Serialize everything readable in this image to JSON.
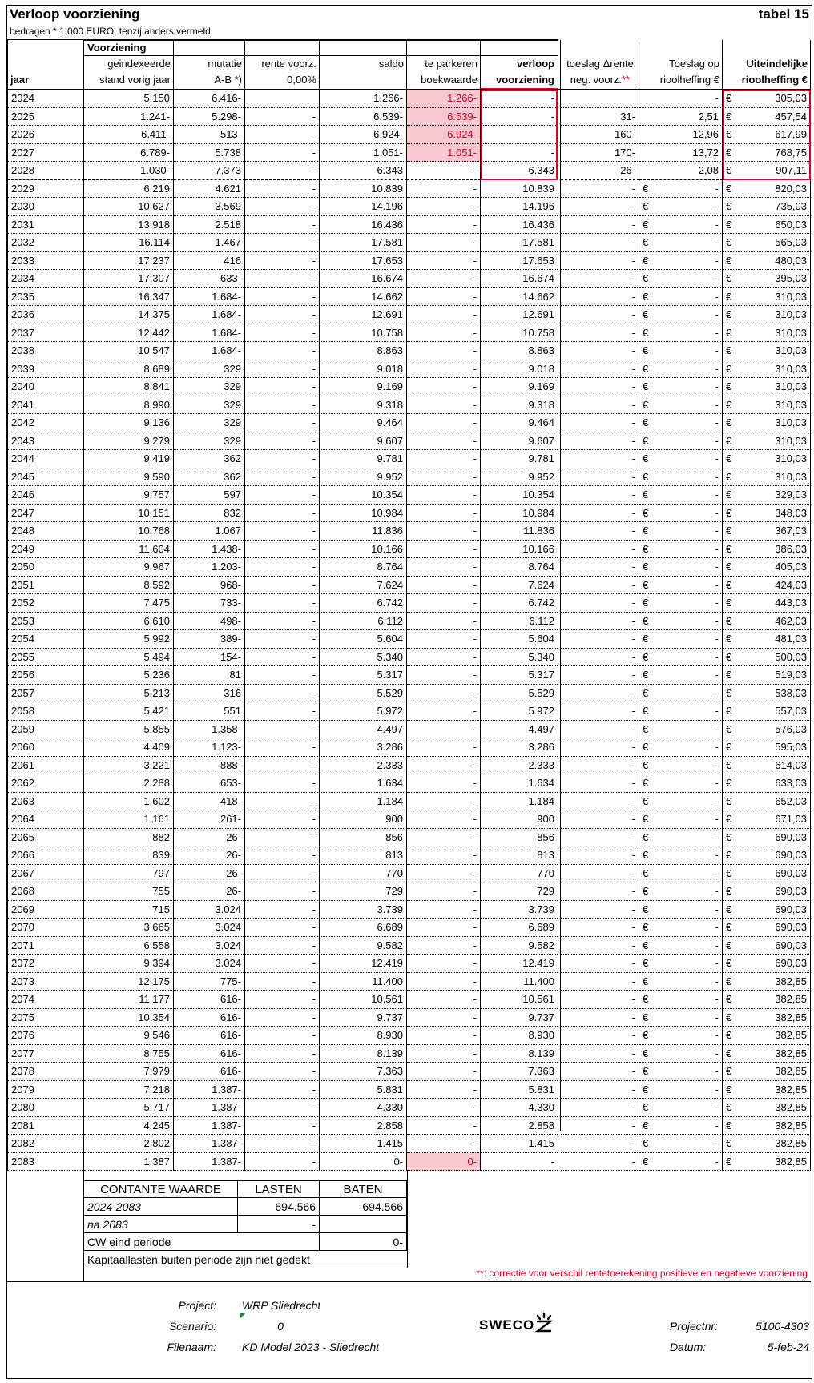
{
  "title": "Verloop voorziening",
  "table_label": "tabel 15",
  "subtitle": "bedragen * 1.000 EURO, tenzij anders vermeld",
  "header": {
    "group": "Voorziening",
    "columns": [
      {
        "line2": "jaar"
      },
      {
        "line1": "geindexeerde",
        "line2": "stand vorig jaar"
      },
      {
        "line1": "mutatie",
        "line2": "A-B *)"
      },
      {
        "line1": "rente voorz.",
        "line2": "0,00%"
      },
      {
        "line1": "saldo"
      },
      {
        "line1": "te parkeren",
        "line2": "boekwaarde"
      },
      {
        "line1": "verloop",
        "line2": "voorziening"
      },
      {
        "line1": "toeslag Δrente",
        "line2": "neg. voorz."
      },
      {
        "line1": "Toeslag op",
        "line2": "rioolheffing €"
      },
      {
        "line1": "Uiteindelijke",
        "line2": "rioolheffing €"
      }
    ],
    "footnote_mark": "**"
  },
  "rows": [
    [
      "2024",
      "5.150",
      "6.416-",
      null,
      "1.266-",
      "1.266-",
      "-",
      null,
      "-",
      [
        "€",
        "305,03"
      ]
    ],
    [
      "2025",
      "1.241-",
      "5.298-",
      "-",
      "6.539-",
      "6.539-",
      "-",
      "31-",
      "2,51",
      [
        "€",
        "457,54"
      ]
    ],
    [
      "2026",
      "6.411-",
      "513-",
      "-",
      "6.924-",
      "6.924-",
      "-",
      "160-",
      "12,96",
      [
        "€",
        "617,99"
      ]
    ],
    [
      "2027",
      "6.789-",
      "5.738",
      "-",
      "1.051-",
      "1.051-",
      "-",
      "170-",
      "13,72",
      [
        "€",
        "768,75"
      ]
    ],
    [
      "2028",
      "1.030-",
      "7.373",
      "-",
      "6.343",
      "-",
      "6.343",
      "26-",
      "2,08",
      [
        "€",
        "907,11"
      ]
    ],
    [
      "2029",
      "6.219",
      "4.621",
      "-",
      "10.839",
      "-",
      "10.839",
      "-",
      [
        "€",
        "-"
      ],
      [
        "€",
        "820,03"
      ]
    ],
    [
      "2030",
      "10.627",
      "3.569",
      "-",
      "14.196",
      "-",
      "14.196",
      "-",
      [
        "€",
        "-"
      ],
      [
        "€",
        "735,03"
      ]
    ],
    [
      "2031",
      "13.918",
      "2.518",
      "-",
      "16.436",
      "-",
      "16.436",
      "-",
      [
        "€",
        "-"
      ],
      [
        "€",
        "650,03"
      ]
    ],
    [
      "2032",
      "16.114",
      "1.467",
      "-",
      "17.581",
      "-",
      "17.581",
      "-",
      [
        "€",
        "-"
      ],
      [
        "€",
        "565,03"
      ]
    ],
    [
      "2033",
      "17.237",
      "416",
      "-",
      "17.653",
      "-",
      "17.653",
      "-",
      [
        "€",
        "-"
      ],
      [
        "€",
        "480,03"
      ]
    ],
    [
      "2034",
      "17.307",
      "633-",
      "-",
      "16.674",
      "-",
      "16.674",
      "-",
      [
        "€",
        "-"
      ],
      [
        "€",
        "395,03"
      ]
    ],
    [
      "2035",
      "16.347",
      "1.684-",
      "-",
      "14.662",
      "-",
      "14.662",
      "-",
      [
        "€",
        "-"
      ],
      [
        "€",
        "310,03"
      ]
    ],
    [
      "2036",
      "14.375",
      "1.684-",
      "-",
      "12.691",
      "-",
      "12.691",
      "-",
      [
        "€",
        "-"
      ],
      [
        "€",
        "310,03"
      ]
    ],
    [
      "2037",
      "12.442",
      "1.684-",
      "-",
      "10.758",
      "-",
      "10.758",
      "-",
      [
        "€",
        "-"
      ],
      [
        "€",
        "310,03"
      ]
    ],
    [
      "2038",
      "10.547",
      "1.684-",
      "-",
      "8.863",
      "-",
      "8.863",
      "-",
      [
        "€",
        "-"
      ],
      [
        "€",
        "310,03"
      ]
    ],
    [
      "2039",
      "8.689",
      "329",
      "-",
      "9.018",
      "-",
      "9.018",
      "-",
      [
        "€",
        "-"
      ],
      [
        "€",
        "310,03"
      ]
    ],
    [
      "2040",
      "8.841",
      "329",
      "-",
      "9.169",
      "-",
      "9.169",
      "-",
      [
        "€",
        "-"
      ],
      [
        "€",
        "310,03"
      ]
    ],
    [
      "2041",
      "8.990",
      "329",
      "-",
      "9.318",
      "-",
      "9.318",
      "-",
      [
        "€",
        "-"
      ],
      [
        "€",
        "310,03"
      ]
    ],
    [
      "2042",
      "9.136",
      "329",
      "-",
      "9.464",
      "-",
      "9.464",
      "-",
      [
        "€",
        "-"
      ],
      [
        "€",
        "310,03"
      ]
    ],
    [
      "2043",
      "9.279",
      "329",
      "-",
      "9.607",
      "-",
      "9.607",
      "-",
      [
        "€",
        "-"
      ],
      [
        "€",
        "310,03"
      ]
    ],
    [
      "2044",
      "9.419",
      "362",
      "-",
      "9.781",
      "-",
      "9.781",
      "-",
      [
        "€",
        "-"
      ],
      [
        "€",
        "310,03"
      ]
    ],
    [
      "2045",
      "9.590",
      "362",
      "-",
      "9.952",
      "-",
      "9.952",
      "-",
      [
        "€",
        "-"
      ],
      [
        "€",
        "310,03"
      ]
    ],
    [
      "2046",
      "9.757",
      "597",
      "-",
      "10.354",
      "-",
      "10.354",
      "-",
      [
        "€",
        "-"
      ],
      [
        "€",
        "329,03"
      ]
    ],
    [
      "2047",
      "10.151",
      "832",
      "-",
      "10.984",
      "-",
      "10.984",
      "-",
      [
        "€",
        "-"
      ],
      [
        "€",
        "348,03"
      ]
    ],
    [
      "2048",
      "10.768",
      "1.067",
      "-",
      "11.836",
      "-",
      "11.836",
      "-",
      [
        "€",
        "-"
      ],
      [
        "€",
        "367,03"
      ]
    ],
    [
      "2049",
      "11.604",
      "1.438-",
      "-",
      "10.166",
      "-",
      "10.166",
      "-",
      [
        "€",
        "-"
      ],
      [
        "€",
        "386,03"
      ]
    ],
    [
      "2050",
      "9.967",
      "1.203-",
      "-",
      "8.764",
      "-",
      "8.764",
      "-",
      [
        "€",
        "-"
      ],
      [
        "€",
        "405,03"
      ]
    ],
    [
      "2051",
      "8.592",
      "968-",
      "-",
      "7.624",
      "-",
      "7.624",
      "-",
      [
        "€",
        "-"
      ],
      [
        "€",
        "424,03"
      ]
    ],
    [
      "2052",
      "7.475",
      "733-",
      "-",
      "6.742",
      "-",
      "6.742",
      "-",
      [
        "€",
        "-"
      ],
      [
        "€",
        "443,03"
      ]
    ],
    [
      "2053",
      "6.610",
      "498-",
      "-",
      "6.112",
      "-",
      "6.112",
      "-",
      [
        "€",
        "-"
      ],
      [
        "€",
        "462,03"
      ]
    ],
    [
      "2054",
      "5.992",
      "389-",
      "-",
      "5.604",
      "-",
      "5.604",
      "-",
      [
        "€",
        "-"
      ],
      [
        "€",
        "481,03"
      ]
    ],
    [
      "2055",
      "5.494",
      "154-",
      "-",
      "5.340",
      "-",
      "5.340",
      "-",
      [
        "€",
        "-"
      ],
      [
        "€",
        "500,03"
      ]
    ],
    [
      "2056",
      "5.236",
      "81",
      "-",
      "5.317",
      "-",
      "5.317",
      "-",
      [
        "€",
        "-"
      ],
      [
        "€",
        "519,03"
      ]
    ],
    [
      "2057",
      "5.213",
      "316",
      "-",
      "5.529",
      "-",
      "5.529",
      "-",
      [
        "€",
        "-"
      ],
      [
        "€",
        "538,03"
      ]
    ],
    [
      "2058",
      "5.421",
      "551",
      "-",
      "5.972",
      "-",
      "5.972",
      "-",
      [
        "€",
        "-"
      ],
      [
        "€",
        "557,03"
      ]
    ],
    [
      "2059",
      "5.855",
      "1.358-",
      "-",
      "4.497",
      "-",
      "4.497",
      "-",
      [
        "€",
        "-"
      ],
      [
        "€",
        "576,03"
      ]
    ],
    [
      "2060",
      "4.409",
      "1.123-",
      "-",
      "3.286",
      "-",
      "3.286",
      "-",
      [
        "€",
        "-"
      ],
      [
        "€",
        "595,03"
      ]
    ],
    [
      "2061",
      "3.221",
      "888-",
      "-",
      "2.333",
      "-",
      "2.333",
      "-",
      [
        "€",
        "-"
      ],
      [
        "€",
        "614,03"
      ]
    ],
    [
      "2062",
      "2.288",
      "653-",
      "-",
      "1.634",
      "-",
      "1.634",
      "-",
      [
        "€",
        "-"
      ],
      [
        "€",
        "633,03"
      ]
    ],
    [
      "2063",
      "1.602",
      "418-",
      "-",
      "1.184",
      "-",
      "1.184",
      "-",
      [
        "€",
        "-"
      ],
      [
        "€",
        "652,03"
      ]
    ],
    [
      "2064",
      "1.161",
      "261-",
      "-",
      "900",
      "-",
      "900",
      "-",
      [
        "€",
        "-"
      ],
      [
        "€",
        "671,03"
      ]
    ],
    [
      "2065",
      "882",
      "26-",
      "-",
      "856",
      "-",
      "856",
      "-",
      [
        "€",
        "-"
      ],
      [
        "€",
        "690,03"
      ]
    ],
    [
      "2066",
      "839",
      "26-",
      "-",
      "813",
      "-",
      "813",
      "-",
      [
        "€",
        "-"
      ],
      [
        "€",
        "690,03"
      ]
    ],
    [
      "2067",
      "797",
      "26-",
      "-",
      "770",
      "-",
      "770",
      "-",
      [
        "€",
        "-"
      ],
      [
        "€",
        "690,03"
      ]
    ],
    [
      "2068",
      "755",
      "26-",
      "-",
      "729",
      "-",
      "729",
      "-",
      [
        "€",
        "-"
      ],
      [
        "€",
        "690,03"
      ]
    ],
    [
      "2069",
      "715",
      "3.024",
      "-",
      "3.739",
      "-",
      "3.739",
      "-",
      [
        "€",
        "-"
      ],
      [
        "€",
        "690,03"
      ]
    ],
    [
      "2070",
      "3.665",
      "3.024",
      "-",
      "6.689",
      "-",
      "6.689",
      "-",
      [
        "€",
        "-"
      ],
      [
        "€",
        "690,03"
      ]
    ],
    [
      "2071",
      "6.558",
      "3.024",
      "-",
      "9.582",
      "-",
      "9.582",
      "-",
      [
        "€",
        "-"
      ],
      [
        "€",
        "690,03"
      ]
    ],
    [
      "2072",
      "9.394",
      "3.024",
      "-",
      "12.419",
      "-",
      "12.419",
      "-",
      [
        "€",
        "-"
      ],
      [
        "€",
        "690,03"
      ]
    ],
    [
      "2073",
      "12.175",
      "775-",
      "-",
      "11.400",
      "-",
      "11.400",
      "-",
      [
        "€",
        "-"
      ],
      [
        "€",
        "382,85"
      ]
    ],
    [
      "2074",
      "11.177",
      "616-",
      "-",
      "10.561",
      "-",
      "10.561",
      "-",
      [
        "€",
        "-"
      ],
      [
        "€",
        "382,85"
      ]
    ],
    [
      "2075",
      "10.354",
      "616-",
      "-",
      "9.737",
      "-",
      "9.737",
      "-",
      [
        "€",
        "-"
      ],
      [
        "€",
        "382,85"
      ]
    ],
    [
      "2076",
      "9.546",
      "616-",
      "-",
      "8.930",
      "-",
      "8.930",
      "-",
      [
        "€",
        "-"
      ],
      [
        "€",
        "382,85"
      ]
    ],
    [
      "2077",
      "8.755",
      "616-",
      "-",
      "8.139",
      "-",
      "8.139",
      "-",
      [
        "€",
        "-"
      ],
      [
        "€",
        "382,85"
      ]
    ],
    [
      "2078",
      "7.979",
      "616-",
      "-",
      "7.363",
      "-",
      "7.363",
      "-",
      [
        "€",
        "-"
      ],
      [
        "€",
        "382,85"
      ]
    ],
    [
      "2079",
      "7.218",
      "1.387-",
      "-",
      "5.831",
      "-",
      "5.831",
      "-",
      [
        "€",
        "-"
      ],
      [
        "€",
        "382,85"
      ]
    ],
    [
      "2080",
      "5.717",
      "1.387-",
      "-",
      "4.330",
      "-",
      "4.330",
      "-",
      [
        "€",
        "-"
      ],
      [
        "€",
        "382,85"
      ]
    ],
    [
      "2081",
      "4.245",
      "1.387-",
      "-",
      "2.858",
      "-",
      "2.858",
      "-",
      [
        "€",
        "-"
      ],
      [
        "€",
        "382,85"
      ]
    ],
    [
      "2082",
      "2.802",
      "1.387-",
      "-",
      "1.415",
      "-",
      "1.415",
      "-",
      [
        "€",
        "-"
      ],
      [
        "€",
        "382,85"
      ]
    ],
    [
      "2083",
      "1.387",
      "1.387-",
      "-",
      "0-",
      "0-",
      "-",
      "-",
      [
        "€",
        "-"
      ],
      [
        "€",
        "382,85"
      ]
    ]
  ],
  "summary": {
    "header": [
      "CONTANTE WAARDE",
      "LASTEN",
      "BATEN"
    ],
    "rows": [
      [
        "2024-2083",
        "694.566",
        "694.566"
      ],
      [
        "na 2083",
        "-",
        null
      ],
      [
        "CW eind periode",
        null,
        "0-"
      ]
    ],
    "note": "Kapitaallasten buiten periode zijn niet gedekt"
  },
  "footnote": "**: correctie voor verschil rentetoerekening positieve en negatieve voorziening",
  "footer": {
    "project_label": "Project:",
    "project": "WRP Sliedrecht",
    "scenario_label": "Scenario:",
    "scenario": "0",
    "filename_label": "Filenaam:",
    "filename": "KD Model 2023 - Sliedrecht",
    "logo": "SWECO",
    "projectnr_label": "Projectnr:",
    "projectnr": "5100-4303",
    "date_label": "Datum:",
    "date": "5-feb-24"
  }
}
